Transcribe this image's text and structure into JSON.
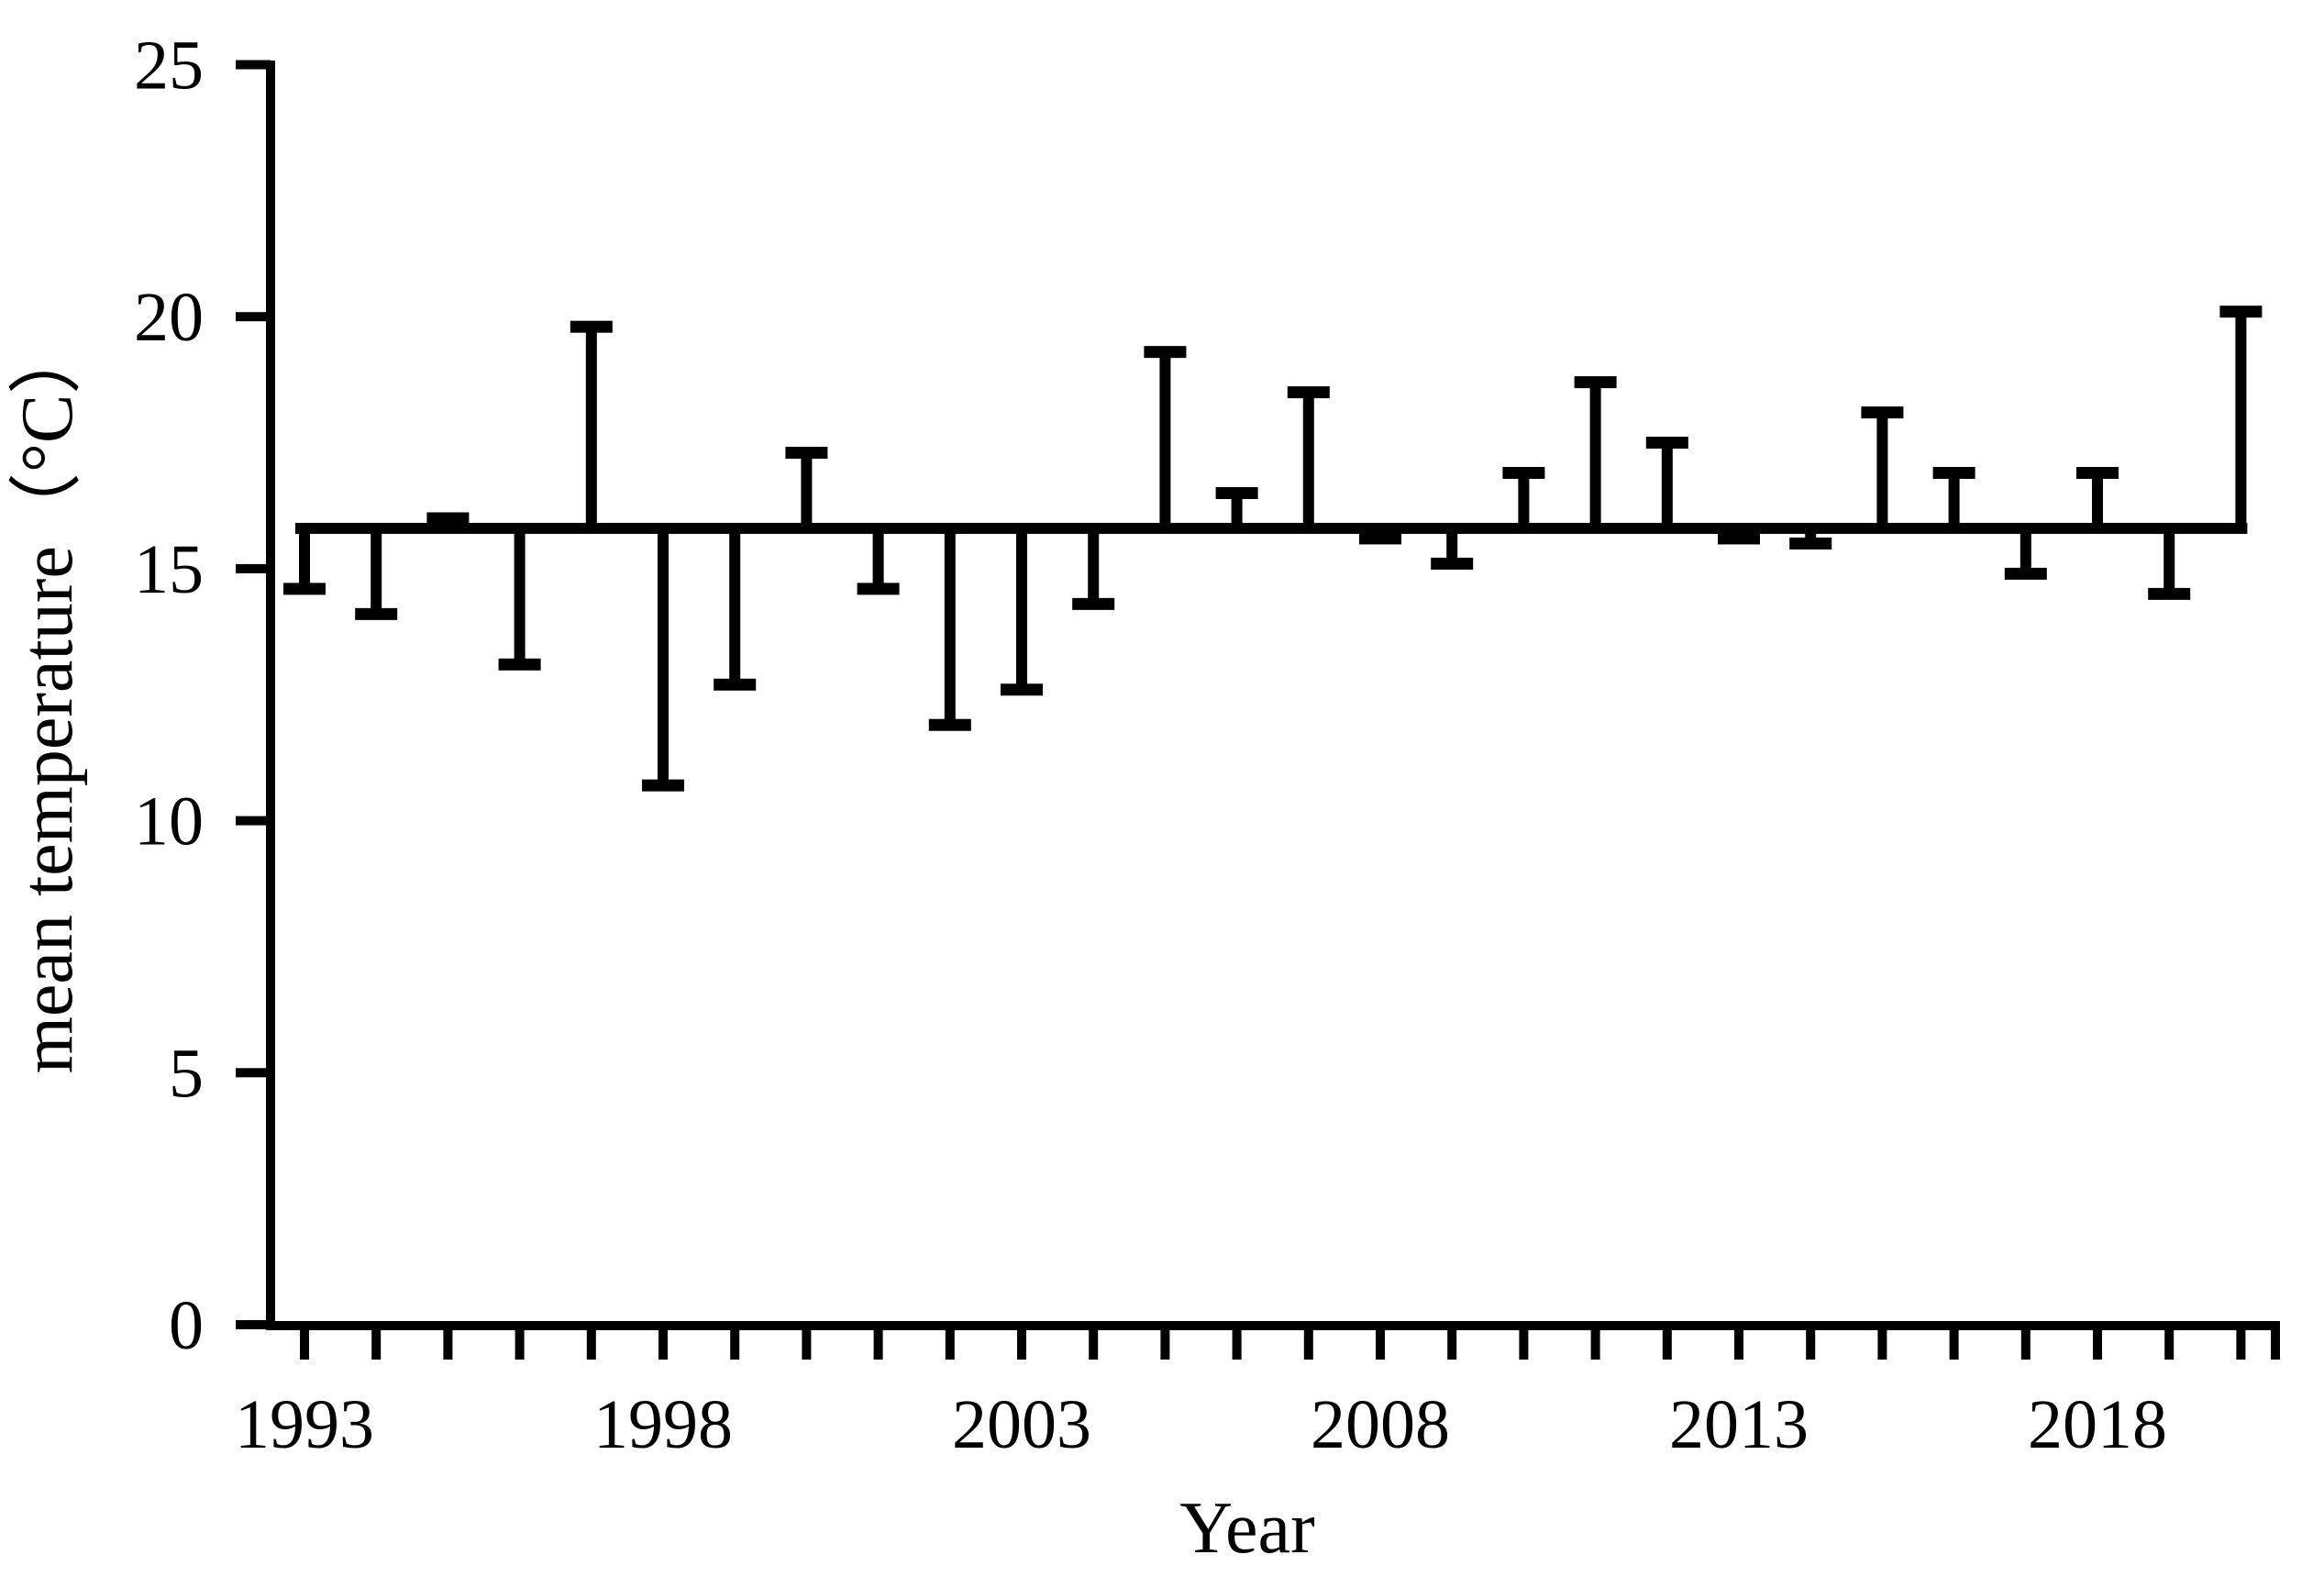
{
  "figure": {
    "background_color": "#ffffff",
    "foreground_color": "#000000"
  },
  "chart_data": {
    "type": "bar",
    "variant": "baseline-deviation-whiskers",
    "title": "",
    "xlabel": "Year",
    "ylabel": "mean temperature（°C）",
    "baseline_value": 15.8,
    "ylim": [
      0,
      25
    ],
    "yticks": [
      0,
      5,
      10,
      15,
      20,
      25
    ],
    "ytick_labels": [
      "0",
      "5",
      "10",
      "15",
      "20",
      "25"
    ],
    "xtick_labeled_years": [
      1993,
      1998,
      2003,
      2008,
      2013,
      2018
    ],
    "x": [
      1993,
      1994,
      1995,
      1996,
      1997,
      1998,
      1999,
      2000,
      2001,
      2002,
      2003,
      2004,
      2005,
      2006,
      2007,
      2008,
      2009,
      2010,
      2011,
      2012,
      2013,
      2014,
      2015,
      2016,
      2017,
      2018,
      2019,
      2020
    ],
    "values": [
      14.6,
      14.1,
      16.0,
      13.1,
      19.8,
      10.7,
      12.7,
      17.3,
      14.6,
      11.9,
      12.6,
      14.3,
      19.3,
      16.5,
      18.5,
      15.6,
      15.1,
      16.9,
      18.7,
      17.5,
      15.6,
      15.5,
      18.1,
      16.9,
      14.9,
      16.9,
      14.5,
      20.1
    ],
    "legend": "none",
    "grid": "off"
  }
}
